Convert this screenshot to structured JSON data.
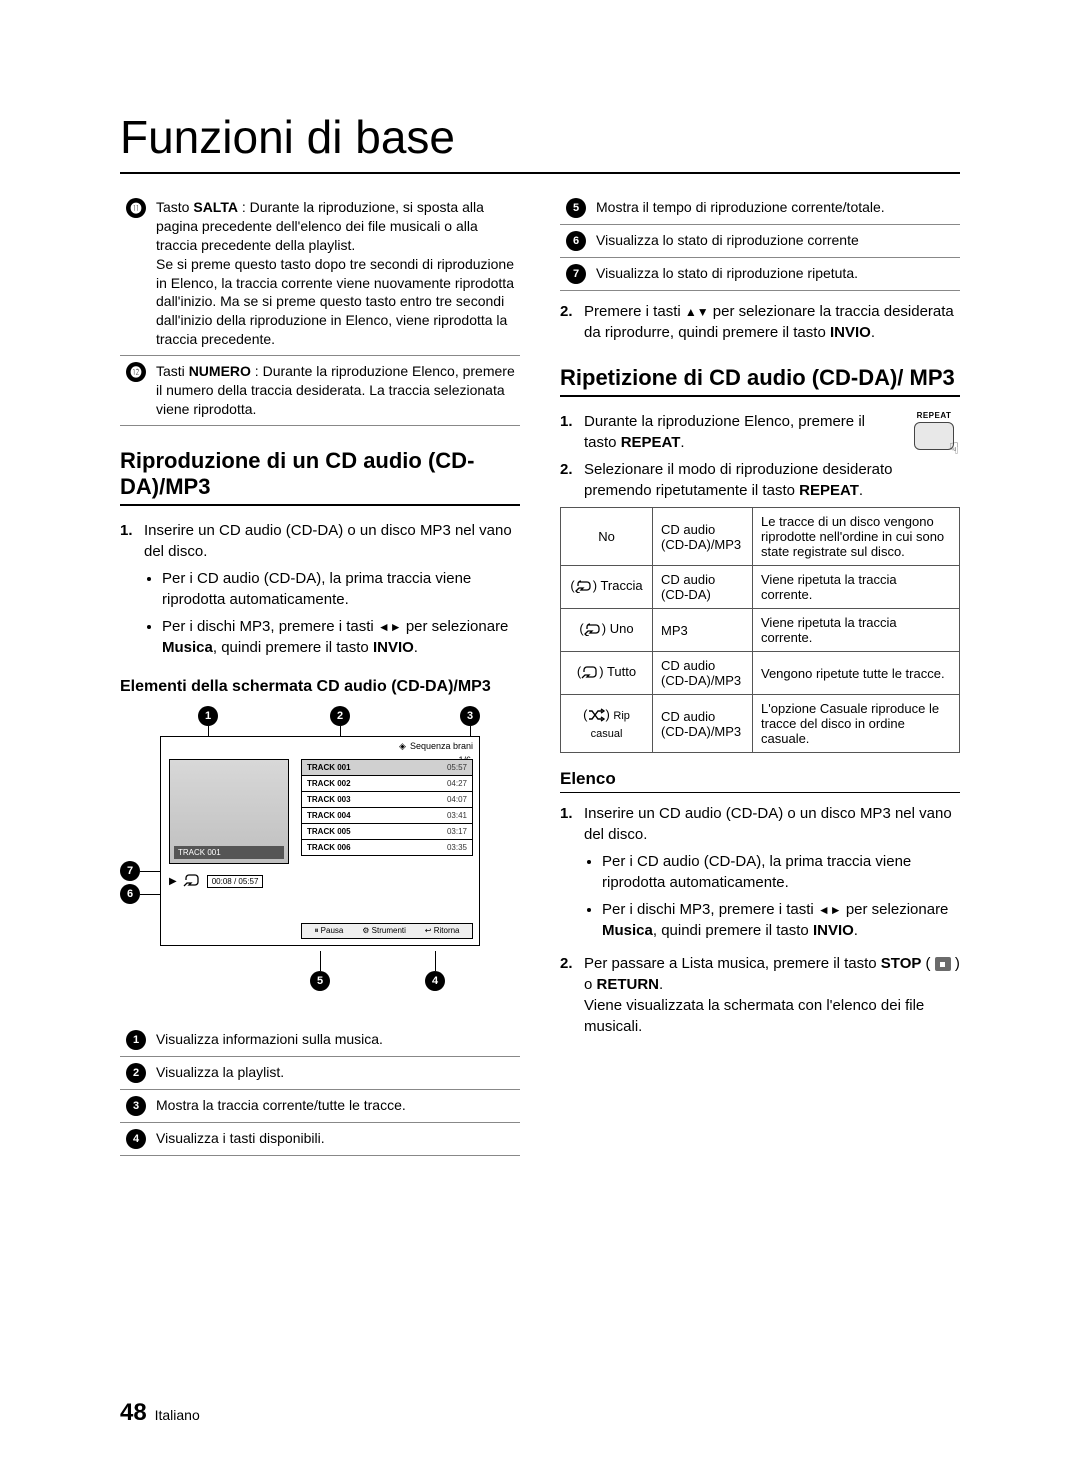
{
  "page": {
    "title": "Funzioni di base",
    "number": "48",
    "lang": "Italiano"
  },
  "left": {
    "refs": {
      "r11": "Tasto <b>SALTA</b> : Durante la riproduzione, si sposta alla pagina precedente dell'elenco dei file musicali o alla traccia precedente della playlist.<br>Se si preme questo tasto dopo tre secondi di riproduzione in Elenco, la traccia corrente viene nuovamente riprodotta dall'inizio. Ma se si preme questo tasto entro tre secondi dall'inizio della riproduzione in Elenco, viene riprodotta la traccia precedente.",
      "r12": "Tasti <b>NUMERO</b> : Durante la riproduzione Elenco, premere il numero della traccia desiderata. La traccia selezionata viene riprodotta."
    },
    "section1_title": "Riproduzione di un CD audio (CD-DA)/MP3",
    "steps1": {
      "s1_intro": "Inserire un CD audio (CD-DA) o un disco MP3 nel vano del disco.",
      "s1_b1": "Per i CD audio (CD-DA), la prima traccia viene riprodotta automaticamente.",
      "s1_b2_a": "Per i dischi MP3, premere i tasti ",
      "s1_b2_b": " per selezionare <b>Musica</b>, quindi premere il tasto <b>INVIO</b>."
    },
    "subheading": "Elementi della schermata CD audio (CD-DA)/MP3",
    "screenshot": {
      "header_label": "Sequenza brani",
      "header_page": "1/6",
      "cd_track": "TRACK 001",
      "time": "00:08 / 05:57",
      "tracks": [
        {
          "t": "TRACK 001",
          "d": "05:57"
        },
        {
          "t": "TRACK 002",
          "d": "04:27"
        },
        {
          "t": "TRACK 003",
          "d": "04:07"
        },
        {
          "t": "TRACK 004",
          "d": "03:41"
        },
        {
          "t": "TRACK 005",
          "d": "03:17"
        },
        {
          "t": "TRACK 006",
          "d": "03:35"
        }
      ],
      "bar": {
        "pause": "Pausa",
        "tools": "Strumenti",
        "ret": "Ritorna"
      }
    },
    "refs2": {
      "r1": "Visualizza informazioni sulla musica.",
      "r2": "Visualizza la playlist.",
      "r3": "Mostra la traccia corrente/tutte le tracce.",
      "r4": "Visualizza i tasti disponibili."
    }
  },
  "right": {
    "refs": {
      "r5": "Mostra il tempo di riproduzione corrente/totale.",
      "r6": "Visualizza lo stato di riproduzione corrente",
      "r7": "Visualizza lo stato di riproduzione ripetuta."
    },
    "step2_a": "Premere i tasti ",
    "step2_b": " per selezionare la traccia desiderata da riprodurre, quindi premere il tasto <b>INVIO</b>.",
    "section2_title": "Ripetizione di CD audio (CD-DA)/ MP3",
    "rep_steps": {
      "s1": "Durante la riproduzione Elenco, premere il tasto <b>REPEAT</b>.",
      "s2": "Selezionare il modo di riproduzione desiderato premendo ripetutamente il tasto <b>REPEAT</b>."
    },
    "repeat_label": "REPEAT",
    "modes": {
      "h_mode": "No",
      "h_type": "CD audio (CD-DA)/MP3",
      "h_desc": "Le tracce di un disco vengono riprodotte nell'ordine in cui sono state registrate sul disco.",
      "r1_m": "Traccia",
      "r1_t": "CD audio (CD-DA)",
      "r1_d": "Viene ripetuta la traccia corrente.",
      "r2_m": "Uno",
      "r2_t": "MP3",
      "r2_d": "Viene ripetuta la traccia corrente.",
      "r3_m": "Tutto",
      "r3_t": "CD audio (CD-DA)/MP3",
      "r3_d": "Vengono ripetute tutte le tracce.",
      "r4_m": "Rip casual",
      "r4_t": "CD audio (CD-DA)/MP3",
      "r4_d": "L'opzione Casuale riproduce le tracce del disco in ordine casuale."
    },
    "section3_title": "Elenco",
    "elenco_steps": {
      "s1_intro": "Inserire un CD audio (CD-DA) o un disco MP3 nel vano del disco.",
      "s1_b1": "Per i CD audio (CD-DA), la prima traccia viene riprodotta automaticamente.",
      "s1_b2_a": "Per i dischi MP3, premere i tasti ",
      "s1_b2_b": " per selezionare <b>Musica</b>, quindi premere il tasto <b>INVIO</b>.",
      "s2_a": "Per passare a Lista musica, premere il tasto <b>STOP</b> ( ",
      "s2_b": " ) o <b>RETURN</b>.<br>Viene visualizzata la schermata con l'elenco dei file musicali."
    }
  },
  "icons": {
    "repeat_one_svg": "<svg width='18' height='14' viewBox='0 0 18 14'><path d='M4 3h8a3 3 0 0 1 3 3v2a3 3 0 0 1-3 3H6l2-2H4l-3 3 3 3v-2' fill='none' stroke='#000' stroke-width='1.3'/><path d='M3 7V5a3 3 0 0 1 3-3' fill='none' stroke='#000' stroke-width='1.3'/></svg>",
    "repeat_svg": "<svg width='18' height='14' viewBox='0 0 18 14'><path d='M3 7V5a3 3 0 0 1 3-3h6a3 3 0 0 1 3 3v4a3 3 0 0 1-3 3H6l2-2H4l-3 3' fill='none' stroke='#000' stroke-width='1.3'/></svg>",
    "shuffle_svg": "<svg width='18' height='14' viewBox='0 0 18 14'><path d='M2 3h3l6 8h4M2 11h3l6-8h4' fill='none' stroke='#000' stroke-width='1.4'/><path d='M14 1l3 2-3 2M14 9l3 2-3 2' fill='none' stroke='#000' stroke-width='1.4'/></svg>"
  }
}
